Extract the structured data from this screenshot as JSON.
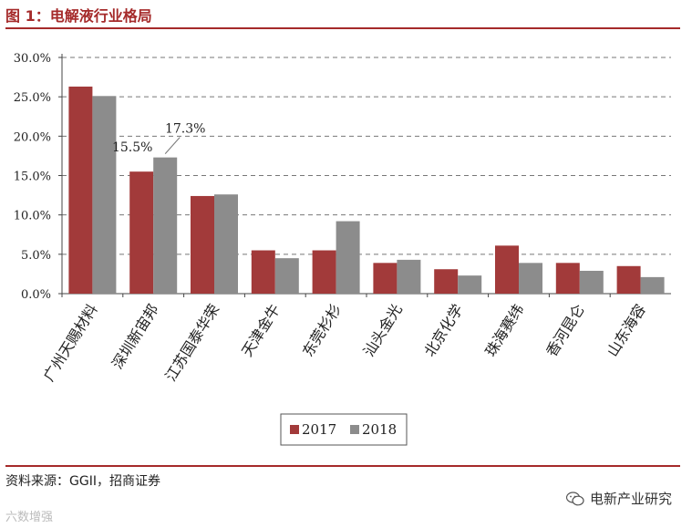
{
  "header": {
    "title": "图 1：电解液行业格局"
  },
  "footer": {
    "source": "资料来源：GGII，招商证券",
    "watermark_left": "六数增强",
    "watermark_right": "电新产业研究"
  },
  "colors": {
    "series_2017": "#a23a3a",
    "series_2018": "#8c8c8c",
    "accent": "#a52a2a"
  },
  "chart_data": {
    "type": "bar",
    "categories": [
      "广州天赐材料",
      "深圳新宙邦",
      "江苏国泰华荣",
      "天津金牛",
      "东莞杉杉",
      "汕头金光",
      "北京化学",
      "珠海赛纬",
      "香河昆仑",
      "山东海容"
    ],
    "series": [
      {
        "name": "2017",
        "values": [
          26.3,
          15.5,
          12.4,
          5.5,
          5.5,
          3.9,
          3.1,
          6.1,
          3.9,
          3.5
        ]
      },
      {
        "name": "2018",
        "values": [
          25.1,
          17.3,
          12.6,
          4.5,
          9.2,
          4.3,
          2.3,
          3.9,
          2.9,
          2.1
        ]
      }
    ],
    "yticks": [
      "0.0%",
      "5.0%",
      "10.0%",
      "15.0%",
      "20.0%",
      "25.0%",
      "30.0%"
    ],
    "ylim": [
      0,
      30
    ],
    "annotations": [
      {
        "text": "15.5%",
        "category": 1,
        "series": 0
      },
      {
        "text": "17.3%",
        "category": 1,
        "series": 1
      }
    ],
    "grid": true,
    "legend": "bottom"
  }
}
